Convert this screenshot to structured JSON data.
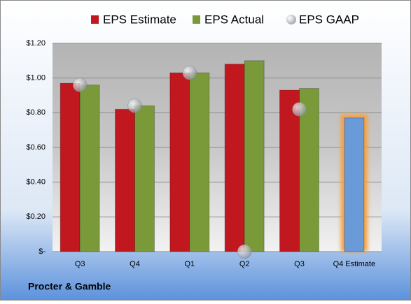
{
  "chart_data": {
    "type": "bar",
    "categories": [
      "Q3",
      "Q4",
      "Q1",
      "Q2",
      "Q3",
      "Q4 Estimate"
    ],
    "series": [
      {
        "name": "EPS Estimate",
        "color": "#c0181e",
        "point_colors": [
          "#c0181e",
          "#c0181e",
          "#c0181e",
          "#c0181e",
          "#c0181e",
          "#6a9ad8"
        ],
        "values": [
          0.97,
          0.82,
          1.03,
          1.08,
          0.93,
          0.77
        ]
      },
      {
        "name": "EPS Actual",
        "color": "#7a9a3a",
        "values": [
          0.96,
          0.84,
          1.03,
          1.1,
          0.94,
          null
        ]
      },
      {
        "name": "EPS GAAP",
        "color": "#a8adb4",
        "marker": "circle",
        "values": [
          0.96,
          0.84,
          1.03,
          0,
          0.82,
          null
        ]
      }
    ],
    "ylim": [
      0,
      1.2
    ],
    "yticks": [
      {
        "value": 0,
        "label": "$-"
      },
      {
        "value": 0.2,
        "label": "$0.20"
      },
      {
        "value": 0.4,
        "label": "$0.40"
      },
      {
        "value": 0.6,
        "label": "$0.60"
      },
      {
        "value": 0.8,
        "label": "$0.80"
      },
      {
        "value": 1.0,
        "label": "$1.00"
      },
      {
        "value": 1.2,
        "label": "$1.20"
      }
    ],
    "grid": true,
    "legend": "top",
    "footer": "Procter & Gamble"
  }
}
